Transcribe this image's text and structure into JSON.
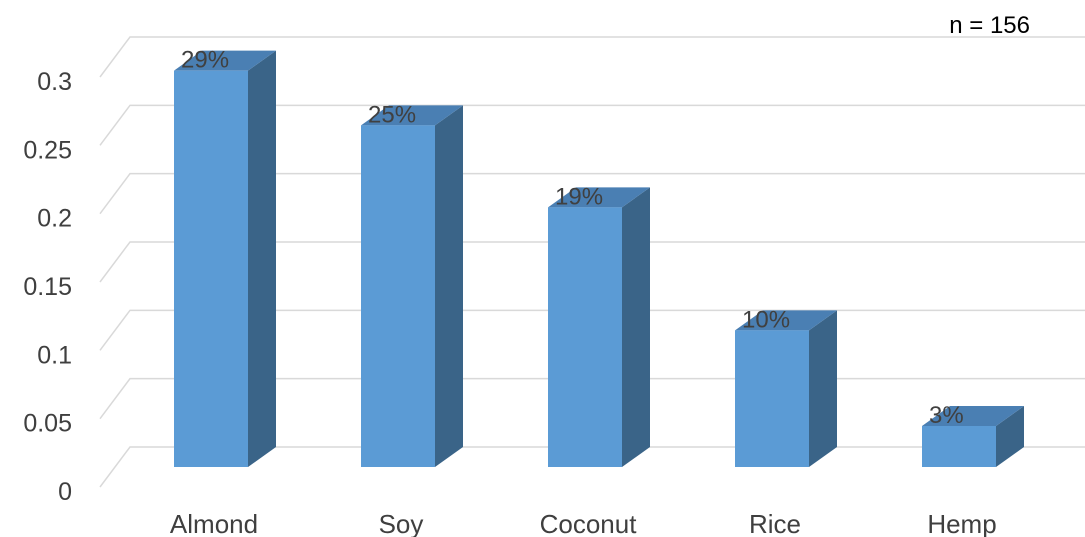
{
  "chart_data": {
    "type": "bar",
    "style": "3d-column",
    "categories": [
      "Almond",
      "Soy",
      "Coconut",
      "Rice",
      "Hemp"
    ],
    "values": [
      0.29,
      0.25,
      0.19,
      0.1,
      0.03
    ],
    "data_labels": [
      "29%",
      "25%",
      "19%",
      "10%",
      "3%"
    ],
    "y_ticks": [
      "0",
      "0.05",
      "0.1",
      "0.15",
      "0.2",
      "0.25",
      "0.3"
    ],
    "ylim": [
      0,
      0.3
    ],
    "grid": true,
    "annotation": "n = 156",
    "title": "",
    "xlabel": "",
    "ylabel": "",
    "colors": {
      "front": "#5b9bd5",
      "side": "#3a6488",
      "top": "#4a7fb3",
      "grid": "#d9d9d9"
    }
  }
}
